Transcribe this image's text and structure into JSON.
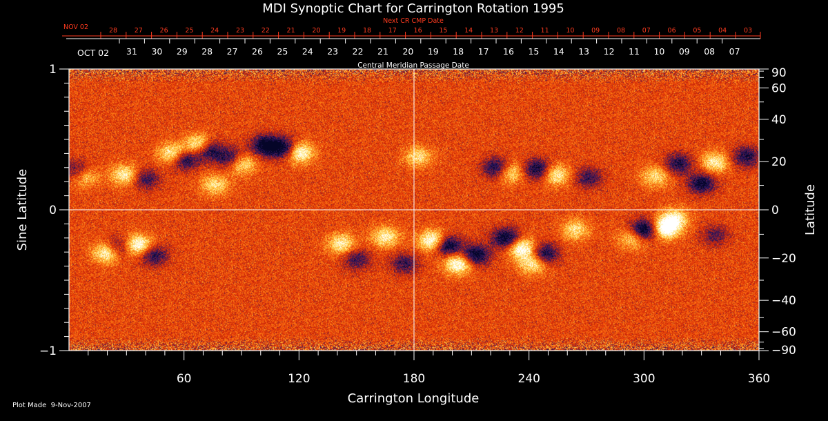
{
  "chart_data": {
    "type": "heatmap",
    "title": "MDI Synoptic Chart for Carrington Rotation 1995",
    "xlabel": "Carrington Longitude",
    "ylabel_left": "Sine Latitude",
    "ylabel_right": "Latitude",
    "xlim": [
      0,
      360
    ],
    "ylim": [
      -1,
      1
    ],
    "x_ticks_major": [
      60,
      120,
      180,
      240,
      300,
      360
    ],
    "x_tick_step_minor": 10,
    "y_ticks_left": [
      {
        "value": 1,
        "label": "1"
      },
      {
        "value": 0,
        "label": "0"
      },
      {
        "value": -1,
        "label": "−1"
      }
    ],
    "y_ticks_right": [
      {
        "deg": 90,
        "label": "90"
      },
      {
        "deg": 60,
        "label": "60"
      },
      {
        "deg": 40,
        "label": "40"
      },
      {
        "deg": 20,
        "label": "20"
      },
      {
        "deg": 0,
        "label": "0"
      },
      {
        "deg": -20,
        "label": "−20"
      },
      {
        "deg": -40,
        "label": "−40"
      },
      {
        "deg": -60,
        "label": "−60"
      },
      {
        "deg": -90,
        "label": "−90"
      }
    ],
    "crosshair": {
      "longitude": 180,
      "sine_latitude": 0
    },
    "next_cr_axis": {
      "label": "Next CR CMP Date",
      "start_label": "NOV 02",
      "days": [
        "28",
        "27",
        "26",
        "25",
        "24",
        "23",
        "22",
        "21",
        "20",
        "19",
        "18",
        "17",
        "16",
        "15",
        "14",
        "13",
        "12",
        "11",
        "10",
        "09",
        "08",
        "07",
        "06",
        "05",
        "04",
        "03"
      ],
      "color": "#ff3b1f"
    },
    "cmp_axis": {
      "label": "Central Meridian Passage Date",
      "start_label": "OCT 02",
      "days": [
        "31",
        "30",
        "29",
        "28",
        "27",
        "26",
        "25",
        "24",
        "23",
        "22",
        "21",
        "20",
        "19",
        "18",
        "17",
        "16",
        "15",
        "14",
        "13",
        "12",
        "11",
        "10",
        "09",
        "08",
        "07"
      ]
    },
    "active_regions": [
      {
        "lon": 68,
        "sinlat": 0.46,
        "polarity": "positive",
        "strength": 0.9
      },
      {
        "lon": 72,
        "sinlat": 0.43,
        "polarity": "negative",
        "strength": 0.9
      },
      {
        "lon": 60,
        "sinlat": 0.36,
        "polarity": "negative",
        "strength": 0.7
      },
      {
        "lon": 54,
        "sinlat": 0.4,
        "polarity": "positive",
        "strength": 0.7
      },
      {
        "lon": 90,
        "sinlat": 0.33,
        "polarity": "positive",
        "strength": 0.6
      },
      {
        "lon": 84,
        "sinlat": 0.37,
        "polarity": "negative",
        "strength": 0.6
      },
      {
        "lon": 102,
        "sinlat": 0.46,
        "polarity": "negative",
        "strength": 0.8
      },
      {
        "lon": 112,
        "sinlat": 0.44,
        "polarity": "negative",
        "strength": 0.8
      },
      {
        "lon": 120,
        "sinlat": 0.41,
        "polarity": "positive",
        "strength": 0.8
      },
      {
        "lon": 29,
        "sinlat": 0.25,
        "polarity": "positive",
        "strength": 0.6
      },
      {
        "lon": 40,
        "sinlat": 0.22,
        "polarity": "negative",
        "strength": 0.5
      },
      {
        "lon": 4,
        "sinlat": 0.28,
        "polarity": "negative",
        "strength": 0.5
      },
      {
        "lon": 8,
        "sinlat": 0.24,
        "polarity": "positive",
        "strength": 0.5
      },
      {
        "lon": 76,
        "sinlat": 0.18,
        "polarity": "positive",
        "strength": 0.5
      },
      {
        "lon": 182,
        "sinlat": 0.38,
        "polarity": "positive",
        "strength": 0.5
      },
      {
        "lon": 223,
        "sinlat": 0.3,
        "polarity": "negative",
        "strength": 0.7
      },
      {
        "lon": 230,
        "sinlat": 0.27,
        "polarity": "positive",
        "strength": 0.6
      },
      {
        "lon": 244,
        "sinlat": 0.29,
        "polarity": "negative",
        "strength": 0.7
      },
      {
        "lon": 254,
        "sinlat": 0.25,
        "polarity": "positive",
        "strength": 0.6
      },
      {
        "lon": 271,
        "sinlat": 0.23,
        "polarity": "negative",
        "strength": 0.5
      },
      {
        "lon": 306,
        "sinlat": 0.24,
        "polarity": "positive",
        "strength": 0.5
      },
      {
        "lon": 318,
        "sinlat": 0.33,
        "polarity": "negative",
        "strength": 0.6
      },
      {
        "lon": 330,
        "sinlat": 0.19,
        "polarity": "negative",
        "strength": 0.7
      },
      {
        "lon": 337,
        "sinlat": 0.34,
        "polarity": "positive",
        "strength": 0.6
      },
      {
        "lon": 353,
        "sinlat": 0.38,
        "polarity": "negative",
        "strength": 0.6
      },
      {
        "lon": 20,
        "sinlat": -0.3,
        "polarity": "positive",
        "strength": 0.8
      },
      {
        "lon": 25,
        "sinlat": -0.27,
        "polarity": "negative",
        "strength": 0.6
      },
      {
        "lon": 36,
        "sinlat": -0.25,
        "polarity": "positive",
        "strength": 0.8
      },
      {
        "lon": 44,
        "sinlat": -0.32,
        "polarity": "negative",
        "strength": 0.6
      },
      {
        "lon": 142,
        "sinlat": -0.24,
        "polarity": "positive",
        "strength": 0.6
      },
      {
        "lon": 150,
        "sinlat": -0.35,
        "polarity": "negative",
        "strength": 0.5
      },
      {
        "lon": 165,
        "sinlat": -0.19,
        "polarity": "positive",
        "strength": 0.6
      },
      {
        "lon": 175,
        "sinlat": -0.38,
        "polarity": "negative",
        "strength": 0.5
      },
      {
        "lon": 190,
        "sinlat": -0.22,
        "polarity": "positive",
        "strength": 0.9
      },
      {
        "lon": 197,
        "sinlat": -0.25,
        "polarity": "negative",
        "strength": 0.9
      },
      {
        "lon": 203,
        "sinlat": -0.38,
        "polarity": "positive",
        "strength": 0.8
      },
      {
        "lon": 212,
        "sinlat": -0.32,
        "polarity": "negative",
        "strength": 0.8
      },
      {
        "lon": 228,
        "sinlat": -0.2,
        "polarity": "negative",
        "strength": 0.8
      },
      {
        "lon": 236,
        "sinlat": -0.27,
        "polarity": "positive",
        "strength": 0.8
      },
      {
        "lon": 248,
        "sinlat": -0.31,
        "polarity": "negative",
        "strength": 0.7
      },
      {
        "lon": 242,
        "sinlat": -0.38,
        "polarity": "positive",
        "strength": 0.6
      },
      {
        "lon": 264,
        "sinlat": -0.14,
        "polarity": "positive",
        "strength": 0.5
      },
      {
        "lon": 300,
        "sinlat": -0.14,
        "polarity": "negative",
        "strength": 0.9
      },
      {
        "lon": 311,
        "sinlat": -0.13,
        "polarity": "positive",
        "strength": 0.9
      },
      {
        "lon": 316,
        "sinlat": -0.06,
        "polarity": "positive",
        "strength": 0.6
      },
      {
        "lon": 294,
        "sinlat": -0.2,
        "polarity": "positive",
        "strength": 0.5
      },
      {
        "lon": 337,
        "sinlat": -0.18,
        "polarity": "negative",
        "strength": 0.4
      }
    ],
    "footer_note": "Plot Made  9-Nov-2007"
  }
}
